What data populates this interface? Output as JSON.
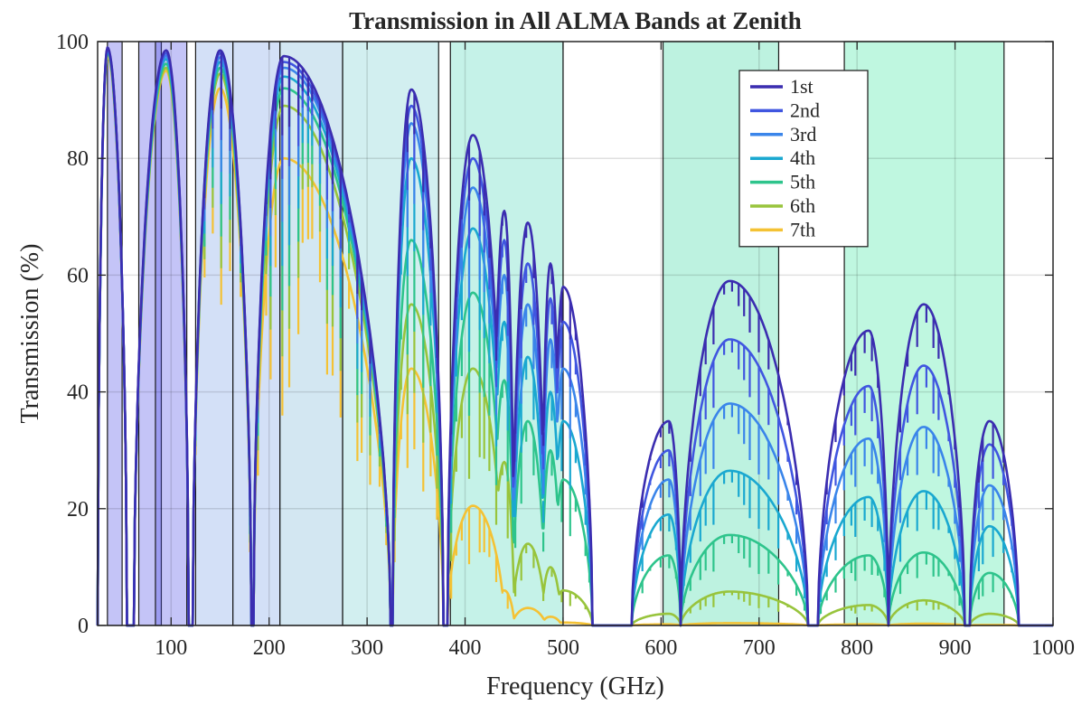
{
  "chart_data": {
    "type": "line",
    "title": "Transmission in All ALMA Bands at Zenith",
    "xlabel": "Frequency (GHz)",
    "ylabel": "Transmission (%)",
    "xlim": [
      25,
      1000
    ],
    "ylim": [
      0,
      100
    ],
    "xticks": [
      100,
      200,
      300,
      400,
      500,
      600,
      700,
      800,
      900,
      1000
    ],
    "yticks": [
      0,
      20,
      40,
      60,
      80,
      100
    ],
    "grid": true,
    "legend_position": "top-right",
    "bands_ghz": [
      [
        35,
        50
      ],
      [
        67,
        90
      ],
      [
        84,
        116
      ],
      [
        125,
        163
      ],
      [
        163,
        211
      ],
      [
        211,
        275
      ],
      [
        275,
        373
      ],
      [
        385,
        500
      ],
      [
        602,
        720
      ],
      [
        787,
        950
      ]
    ],
    "band_colors": [
      "#4b4de6",
      "#4b4de6",
      "#4b4de6",
      "#7aa0e8",
      "#7aa0e8",
      "#78b6d8",
      "#76cfd0",
      "#4fd8b8",
      "#38d8a0",
      "#3ee6a0"
    ],
    "series_colors": [
      "#3b2db0",
      "#4056e0",
      "#3a85ea",
      "#1aa8d0",
      "#2ec48c",
      "#98c43c",
      "#f4c234"
    ],
    "series": [
      {
        "name": "1st",
        "peaks": {
          "w1": 99,
          "w2": 98.5,
          "w3": 98.5,
          "w4": 97.5,
          "w5": 91.8,
          "w6": 84,
          "w7": 71,
          "w8": 69,
          "w9": 62,
          "w10": 58,
          "w11": 35,
          "w12": 59,
          "w13": 50.5,
          "w14": 55,
          "w15": 35
        }
      },
      {
        "name": "2nd",
        "peaks": {
          "w1": 98.8,
          "w2": 98,
          "w3": 98,
          "w4": 96.5,
          "w5": 89,
          "w6": 80,
          "w7": 66,
          "w8": 62,
          "w9": 56,
          "w10": 52,
          "w11": 30,
          "w12": 49,
          "w13": 41,
          "w14": 44.5,
          "w15": 31
        }
      },
      {
        "name": "3rd",
        "peaks": {
          "w1": 98.6,
          "w2": 97.5,
          "w3": 97.3,
          "w4": 95.5,
          "w5": 86,
          "w6": 75,
          "w7": 60,
          "w8": 55,
          "w9": 49,
          "w10": 44,
          "w11": 25,
          "w12": 38,
          "w13": 32,
          "w14": 34,
          "w15": 24
        }
      },
      {
        "name": "4th",
        "peaks": {
          "w1": 98.4,
          "w2": 97,
          "w3": 96.5,
          "w4": 94,
          "w5": 80,
          "w6": 68,
          "w7": 52,
          "w8": 46,
          "w9": 40,
          "w10": 35,
          "w11": 19,
          "w12": 26.5,
          "w13": 22,
          "w14": 23,
          "w15": 17
        }
      },
      {
        "name": "5th",
        "peaks": {
          "w1": 98.2,
          "w2": 96.2,
          "w3": 95.5,
          "w4": 92,
          "w5": 66,
          "w6": 57,
          "w7": 42,
          "w8": 35,
          "w9": 30,
          "w10": 25,
          "w11": 12,
          "w12": 15.5,
          "w13": 12,
          "w14": 12.5,
          "w15": 9
        }
      },
      {
        "name": "6th",
        "peaks": {
          "w1": 98,
          "w2": 95.5,
          "w3": 94.5,
          "w4": 89,
          "w5": 55,
          "w6": 44,
          "w7": 28,
          "w8": 14,
          "w9": 10,
          "w10": 6,
          "w11": 2,
          "w12": 5.8,
          "w13": 3.5,
          "w14": 4.3,
          "w15": 2
        }
      },
      {
        "name": "7th",
        "peaks": {
          "w1": 97.5,
          "w2": 95,
          "w3": 92,
          "w4": 80,
          "w5": 44,
          "w6": 20.5,
          "w7": 6,
          "w8": 3,
          "w9": 1.5,
          "w10": 0.5,
          "w11": 0.2,
          "w12": 0.4,
          "w13": 0.2,
          "w14": 0.3,
          "w15": 0.1
        }
      }
    ],
    "windows_ghz": {
      "w1": [
        25,
        55,
        35
      ],
      "w2": [
        62,
        118,
        95
      ],
      "w3": [
        122,
        182,
        150
      ],
      "w4": [
        184,
        324,
        215
      ],
      "w5": [
        326,
        378,
        345
      ],
      "w6": [
        382,
        440,
        408
      ],
      "w7": [
        428,
        450,
        440
      ],
      "w8": [
        448,
        482,
        464
      ],
      "w9": [
        478,
        498,
        487
      ],
      "w10": [
        490,
        530,
        500
      ],
      "w11": [
        570,
        620,
        608
      ],
      "w12": [
        620,
        750,
        670
      ],
      "w13": [
        760,
        832,
        812
      ],
      "w14": [
        832,
        910,
        868
      ],
      "w15": [
        915,
        965,
        935
      ]
    }
  }
}
